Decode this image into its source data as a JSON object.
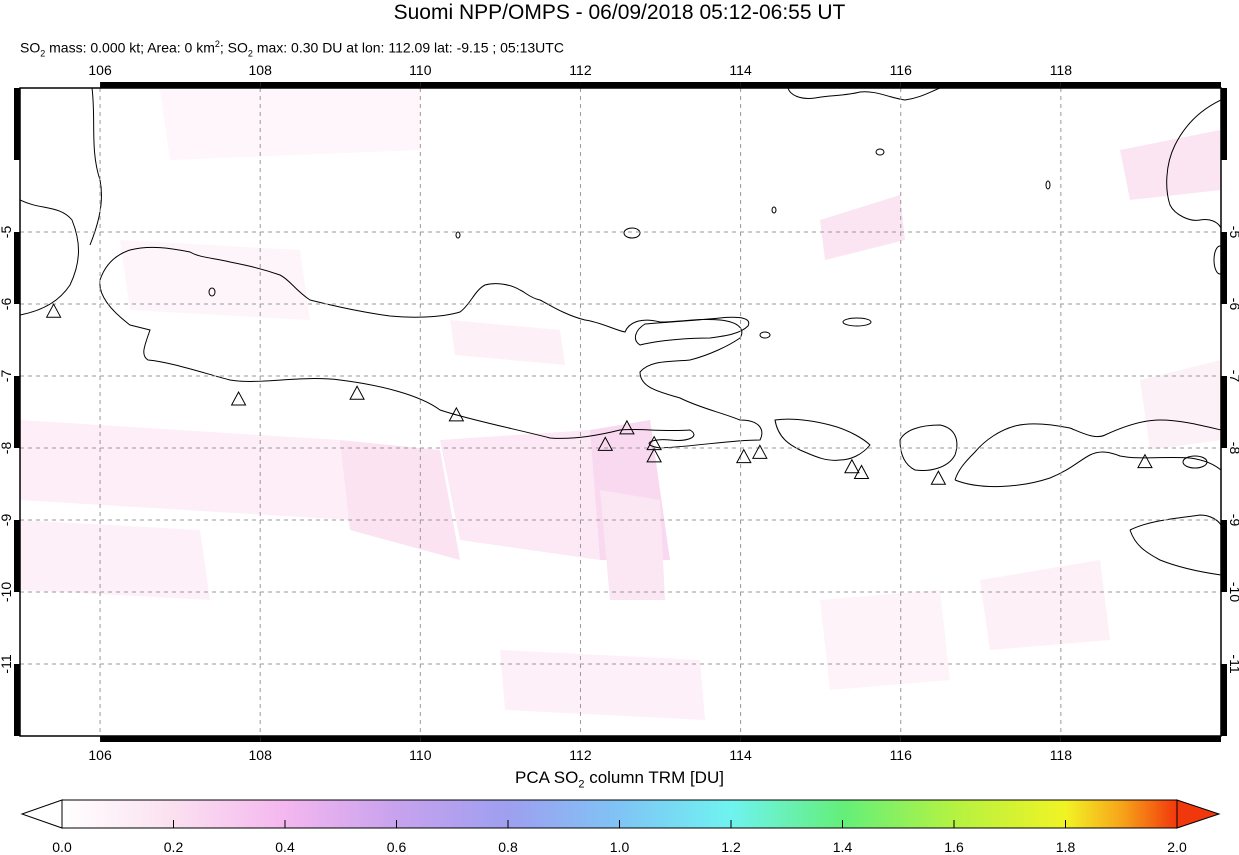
{
  "header": {
    "title": "Suomi NPP/OMPS - 06/09/2018 05:12-06:55 UT",
    "stats_part1": "SO",
    "stats_sub1": "2",
    "stats_part2": " mass: 0.000 kt; Area: 0 km",
    "stats_sup": "2",
    "stats_part3": "; SO",
    "stats_sub2": "2",
    "stats_part4": " max: 0.30 DU at lon: 112.09 lat: -9.15 ; 05:13UTC"
  },
  "map": {
    "lon_range": [
      105,
      120
    ],
    "lat_range": [
      -12,
      -3
    ],
    "lon_ticks": [
      "106",
      "108",
      "110",
      "112",
      "114",
      "116",
      "118"
    ],
    "lat_ticks": [
      "-5",
      "-6",
      "-7",
      "-8",
      "-9",
      "-10",
      "-11"
    ],
    "volcano_icon": "triangle-outline-icon",
    "volcanoes": [
      {
        "lon": 105.42,
        "lat": -6.1
      },
      {
        "lon": 107.73,
        "lat": -7.32
      },
      {
        "lon": 109.21,
        "lat": -7.24
      },
      {
        "lon": 110.45,
        "lat": -7.54
      },
      {
        "lon": 112.31,
        "lat": -7.95
      },
      {
        "lon": 112.58,
        "lat": -7.72
      },
      {
        "lon": 112.92,
        "lat": -7.94
      },
      {
        "lon": 112.92,
        "lat": -8.11
      },
      {
        "lon": 114.04,
        "lat": -8.12
      },
      {
        "lon": 114.24,
        "lat": -8.06
      },
      {
        "lon": 115.39,
        "lat": -8.26
      },
      {
        "lon": 115.51,
        "lat": -8.34
      },
      {
        "lon": 116.47,
        "lat": -8.42
      },
      {
        "lon": 119.05,
        "lat": -8.19
      }
    ]
  },
  "colorbar": {
    "title_part1": "PCA SO",
    "title_sub": "2",
    "title_part2": " column TRM [DU]",
    "ticks": [
      "0.0",
      "0.2",
      "0.4",
      "0.6",
      "0.8",
      "1.0",
      "1.2",
      "1.4",
      "1.6",
      "1.8",
      "2.0"
    ],
    "colors": [
      "#ffffff",
      "#fbe0f0",
      "#f4b7ef",
      "#c8a2ee",
      "#9e9ff0",
      "#7fc4f5",
      "#6ff3f0",
      "#63ef7a",
      "#b4f242",
      "#f1f325",
      "#f7a51a",
      "#f1380c"
    ]
  }
}
